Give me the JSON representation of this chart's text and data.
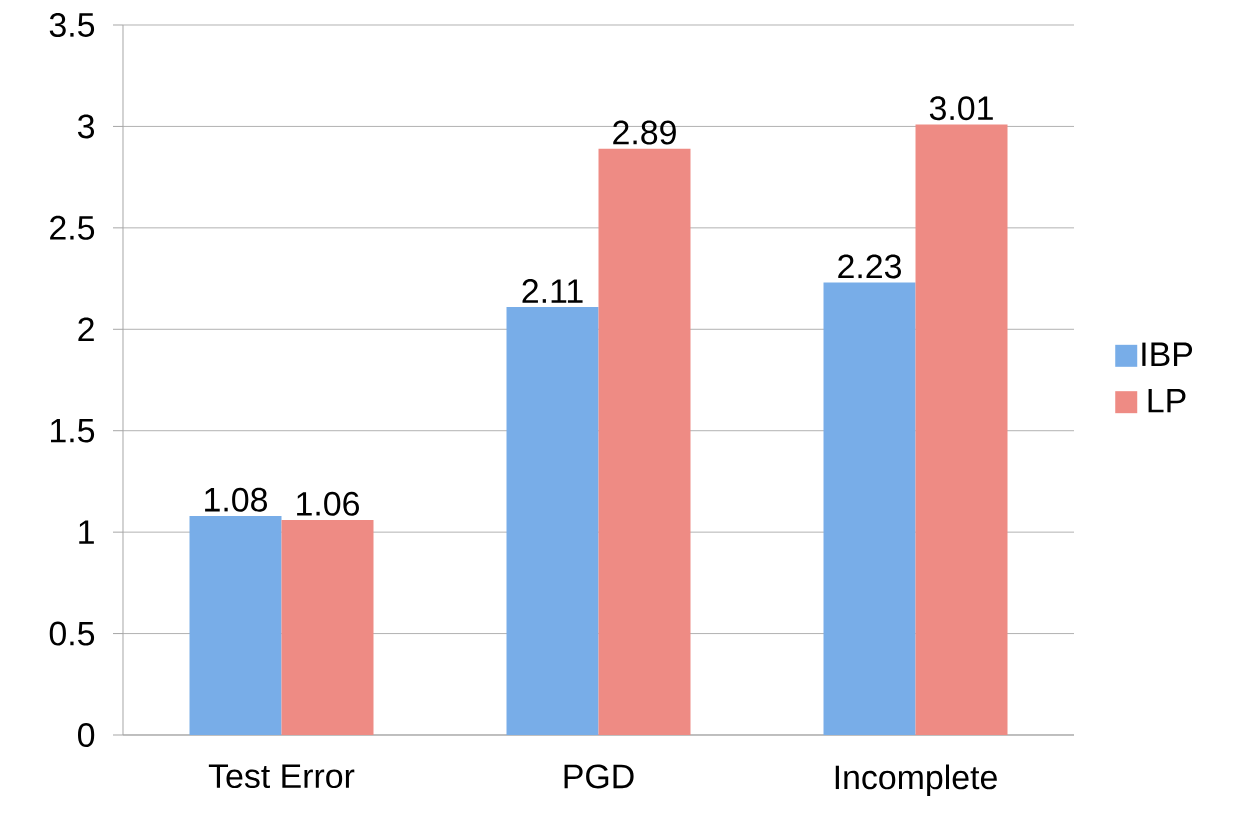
{
  "chart_data": {
    "type": "bar",
    "categories": [
      "Test Error",
      "PGD",
      "Incomplete"
    ],
    "series": [
      {
        "name": "IBP",
        "color": "#78ade8",
        "values": [
          1.08,
          2.11,
          2.23
        ]
      },
      {
        "name": "LP",
        "color": "#ee8b84",
        "values": [
          1.06,
          2.89,
          3.01
        ]
      }
    ],
    "ylim": [
      0,
      3.5
    ],
    "yticks": [
      0,
      0.5,
      1,
      1.5,
      2,
      2.5,
      3,
      3.5
    ],
    "grid": "y",
    "legend": "right",
    "data_labels": true
  }
}
